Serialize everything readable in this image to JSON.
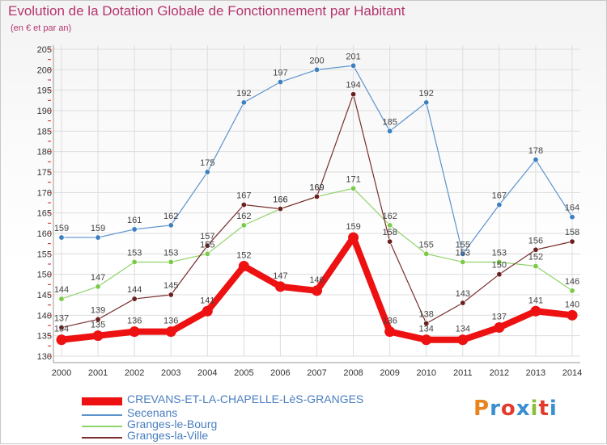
{
  "title": "Evolution de la Dotation Globale de Fonctionnement par Habitant",
  "subtitle": "(en € et par an)",
  "brand": {
    "text": "Proxiti",
    "colors": [
      "#e8841f",
      "#3a8fd0",
      "#e23b2e",
      "#3a8fd0",
      "#8bbf3b",
      "#e23b2e",
      "#3a8fd0"
    ]
  },
  "chart_data": {
    "type": "line",
    "x": [
      "2000",
      "2001",
      "2002",
      "2003",
      "2004",
      "2005",
      "2006",
      "2007",
      "2008",
      "2009",
      "2010",
      "2011",
      "2012",
      "2013",
      "2014"
    ],
    "ylim": [
      130,
      205
    ],
    "yticks": [
      130,
      135,
      140,
      145,
      150,
      155,
      160,
      165,
      170,
      175,
      180,
      185,
      190,
      195,
      200,
      205
    ],
    "grid": true,
    "legend_position": "bottom-left",
    "series": [
      {
        "name": "Secenans",
        "color": "#5b93cc",
        "marker": "#3d7fc0",
        "values": [
          159,
          159,
          161,
          162,
          175,
          192,
          197,
          200,
          201,
          185,
          192,
          155,
          167,
          178,
          164
        ]
      },
      {
        "name": "Granges-le-Bourg",
        "color": "#8fd36b",
        "marker": "#7bcb48",
        "values": [
          144,
          147,
          153,
          153,
          155,
          162,
          166,
          169,
          171,
          162,
          155,
          153,
          153,
          152,
          146
        ]
      },
      {
        "name": "Granges-la-Ville",
        "color": "#7a2e2e",
        "marker": "#6b1f1f",
        "values": [
          137,
          139,
          144,
          145,
          157,
          167,
          166,
          169,
          194,
          158,
          138,
          143,
          150,
          156,
          158
        ]
      },
      {
        "name": "CREVANS-ET-LA-CHAPELLE-LèS-GRANGES",
        "color": "#ee1111",
        "marker": "#ee1111",
        "values": [
          134,
          135,
          136,
          136,
          141,
          152,
          147,
          146,
          159,
          136,
          134,
          134,
          137,
          141,
          140
        ]
      }
    ]
  }
}
